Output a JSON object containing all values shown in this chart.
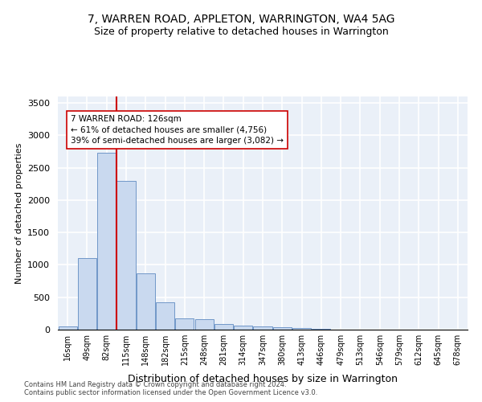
{
  "title1": "7, WARREN ROAD, APPLETON, WARRINGTON, WA4 5AG",
  "title2": "Size of property relative to detached houses in Warrington",
  "xlabel": "Distribution of detached houses by size in Warrington",
  "ylabel": "Number of detached properties",
  "footer1": "Contains HM Land Registry data © Crown copyright and database right 2024.",
  "footer2": "Contains public sector information licensed under the Open Government Licence v3.0.",
  "bar_labels": [
    "16sqm",
    "49sqm",
    "82sqm",
    "115sqm",
    "148sqm",
    "182sqm",
    "215sqm",
    "248sqm",
    "281sqm",
    "314sqm",
    "347sqm",
    "380sqm",
    "413sqm",
    "446sqm",
    "479sqm",
    "513sqm",
    "546sqm",
    "579sqm",
    "612sqm",
    "645sqm",
    "678sqm"
  ],
  "bar_values": [
    50,
    1100,
    2730,
    2300,
    870,
    420,
    170,
    160,
    90,
    65,
    50,
    35,
    25,
    10,
    5,
    3,
    2,
    1,
    0,
    0,
    0
  ],
  "bar_color": "#c9d9ef",
  "bar_edge_color": "#7097c8",
  "property_line_color": "#cc0000",
  "annotation_text": "7 WARREN ROAD: 126sqm\n← 61% of detached houses are smaller (4,756)\n39% of semi-detached houses are larger (3,082) →",
  "ylim": [
    0,
    3600
  ],
  "yticks": [
    0,
    500,
    1000,
    1500,
    2000,
    2500,
    3000,
    3500
  ],
  "background_color": "#eaf0f8",
  "grid_color": "#ffffff",
  "title1_fontsize": 10,
  "title2_fontsize": 9,
  "ylabel_fontsize": 8,
  "xlabel_fontsize": 9
}
